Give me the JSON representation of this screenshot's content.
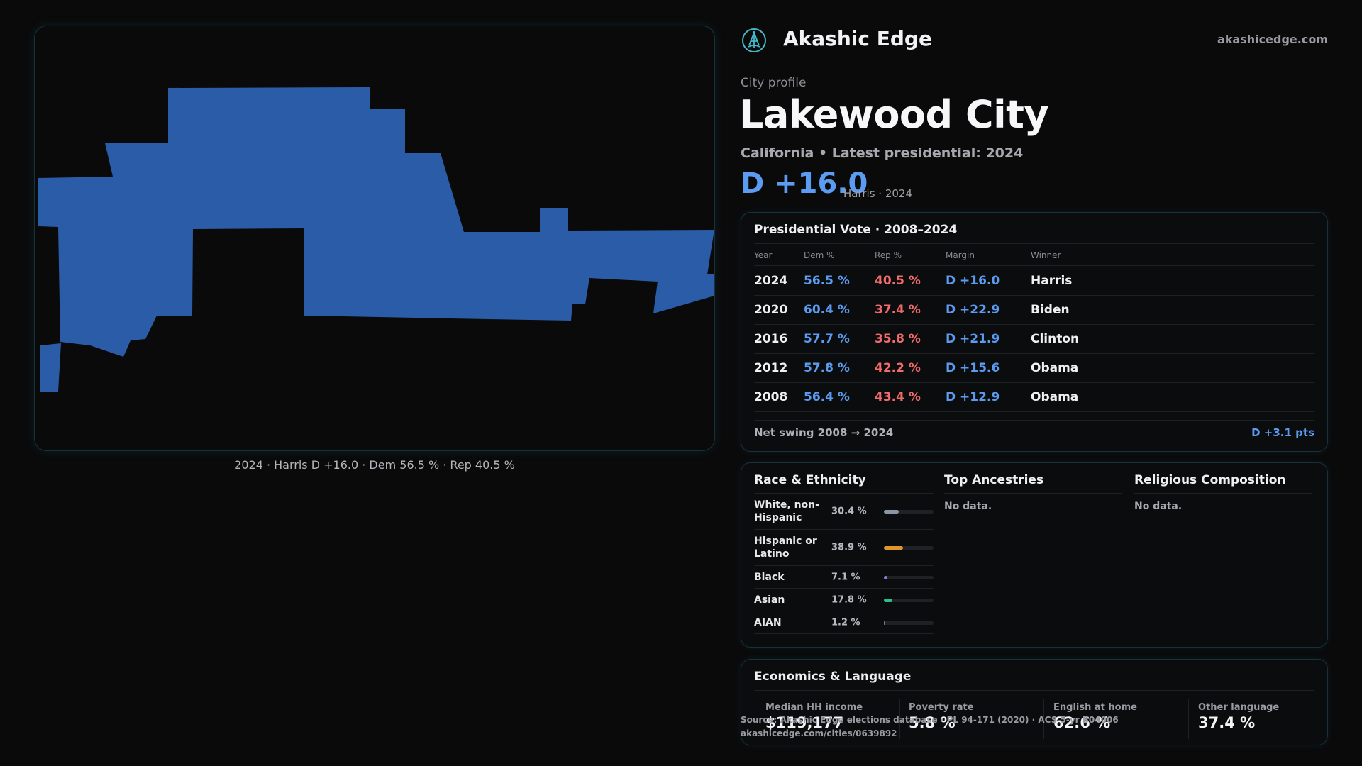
{
  "map": {
    "caption": "2024 · Harris D +16.0 · Dem 56.5 % · Rep 40.5 %",
    "fill_color": "#2b5ca8",
    "border_color": "#16333a"
  },
  "brand": {
    "name": "Akashic Edge",
    "domain": "akashicedge.com",
    "logo_icon": "tree-emblem-icon",
    "accent": "#43b8c9"
  },
  "profile": {
    "kicker": "City profile",
    "title": "Lakewood City",
    "subtitle": "California • Latest presidential: 2024",
    "margin": "D +16.0",
    "margin_note": "Harris · 2024"
  },
  "presidential": {
    "title": "Presidential Vote · 2008–2024",
    "headers": {
      "year": "Year",
      "dem": "Dem %",
      "rep": "Rep %",
      "margin": "Margin",
      "winner": "Winner"
    },
    "rows": [
      {
        "year": "2024",
        "dem": "56.5 %",
        "rep": "40.5 %",
        "margin": "D +16.0",
        "winner": "Harris"
      },
      {
        "year": "2020",
        "dem": "60.4 %",
        "rep": "37.4 %",
        "margin": "D +22.9",
        "winner": "Biden"
      },
      {
        "year": "2016",
        "dem": "57.7 %",
        "rep": "35.8 %",
        "margin": "D +21.9",
        "winner": "Clinton"
      },
      {
        "year": "2012",
        "dem": "57.8 %",
        "rep": "42.2 %",
        "margin": "D +15.6",
        "winner": "Obama"
      },
      {
        "year": "2008",
        "dem": "56.4 %",
        "rep": "43.4 %",
        "margin": "D +12.9",
        "winner": "Obama"
      }
    ],
    "net_swing_label": "Net swing 2008 → 2024",
    "net_swing_value": "D +3.1 pts",
    "dem_color": "#5b9cf2",
    "rep_color": "#f06b6b"
  },
  "race": {
    "title": "Race & Ethnicity",
    "rows": [
      {
        "label": "White, non-Hispanic",
        "pct": "30.4 %",
        "value": 30.4,
        "color": "#8a95a8"
      },
      {
        "label": "Hispanic or Latino",
        "pct": "38.9 %",
        "value": 38.9,
        "color": "#e0962a"
      },
      {
        "label": "Black",
        "pct": "7.1 %",
        "value": 7.1,
        "color": "#8a7ae0"
      },
      {
        "label": "Asian",
        "pct": "17.8 %",
        "value": 17.8,
        "color": "#2fc08a"
      },
      {
        "label": "AIAN",
        "pct": "1.2 %",
        "value": 1.2,
        "color": "#7a7a80"
      }
    ]
  },
  "ancestries": {
    "title": "Top Ancestries",
    "empty": "No data."
  },
  "religion": {
    "title": "Religious Composition",
    "empty": "No data."
  },
  "economics": {
    "title": "Economics & Language",
    "items": [
      {
        "label": "Median HH income",
        "value": "$119,177"
      },
      {
        "label": "Poverty rate",
        "value": "5.8 %"
      },
      {
        "label": "English at home",
        "value": "62.6 %"
      },
      {
        "label": "Other language",
        "value": "37.4 %"
      }
    ]
  },
  "source": {
    "line1": "Source: Akashic Edge elections database · PL 94-171 (2020) · ACS 5-yr B04006",
    "line2": "akashicedge.com/cities/0639892"
  }
}
